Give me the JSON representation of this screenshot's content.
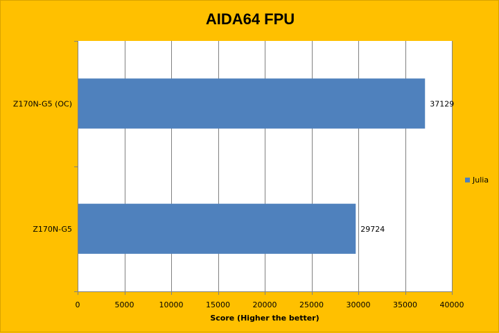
{
  "chart_data": {
    "type": "bar",
    "orientation": "horizontal",
    "title": "AIDA64 FPU",
    "xlabel": "Score (Higher the better)",
    "ylabel": "",
    "categories": [
      "Z170N-G5 (OC)",
      "Z170N-G5"
    ],
    "series": [
      {
        "name": "Julia",
        "values": [
          37129,
          29724
        ],
        "color": "#4f81bd"
      }
    ],
    "xlim": [
      0,
      40000
    ],
    "xticks": [
      0,
      5000,
      10000,
      15000,
      20000,
      25000,
      30000,
      35000,
      40000
    ],
    "grid": "vertical",
    "legend": "right",
    "colors": {
      "background": "#ffc000",
      "plot_area": "#ffffff",
      "grid": "#808080",
      "bar": "#4f81bd"
    }
  }
}
